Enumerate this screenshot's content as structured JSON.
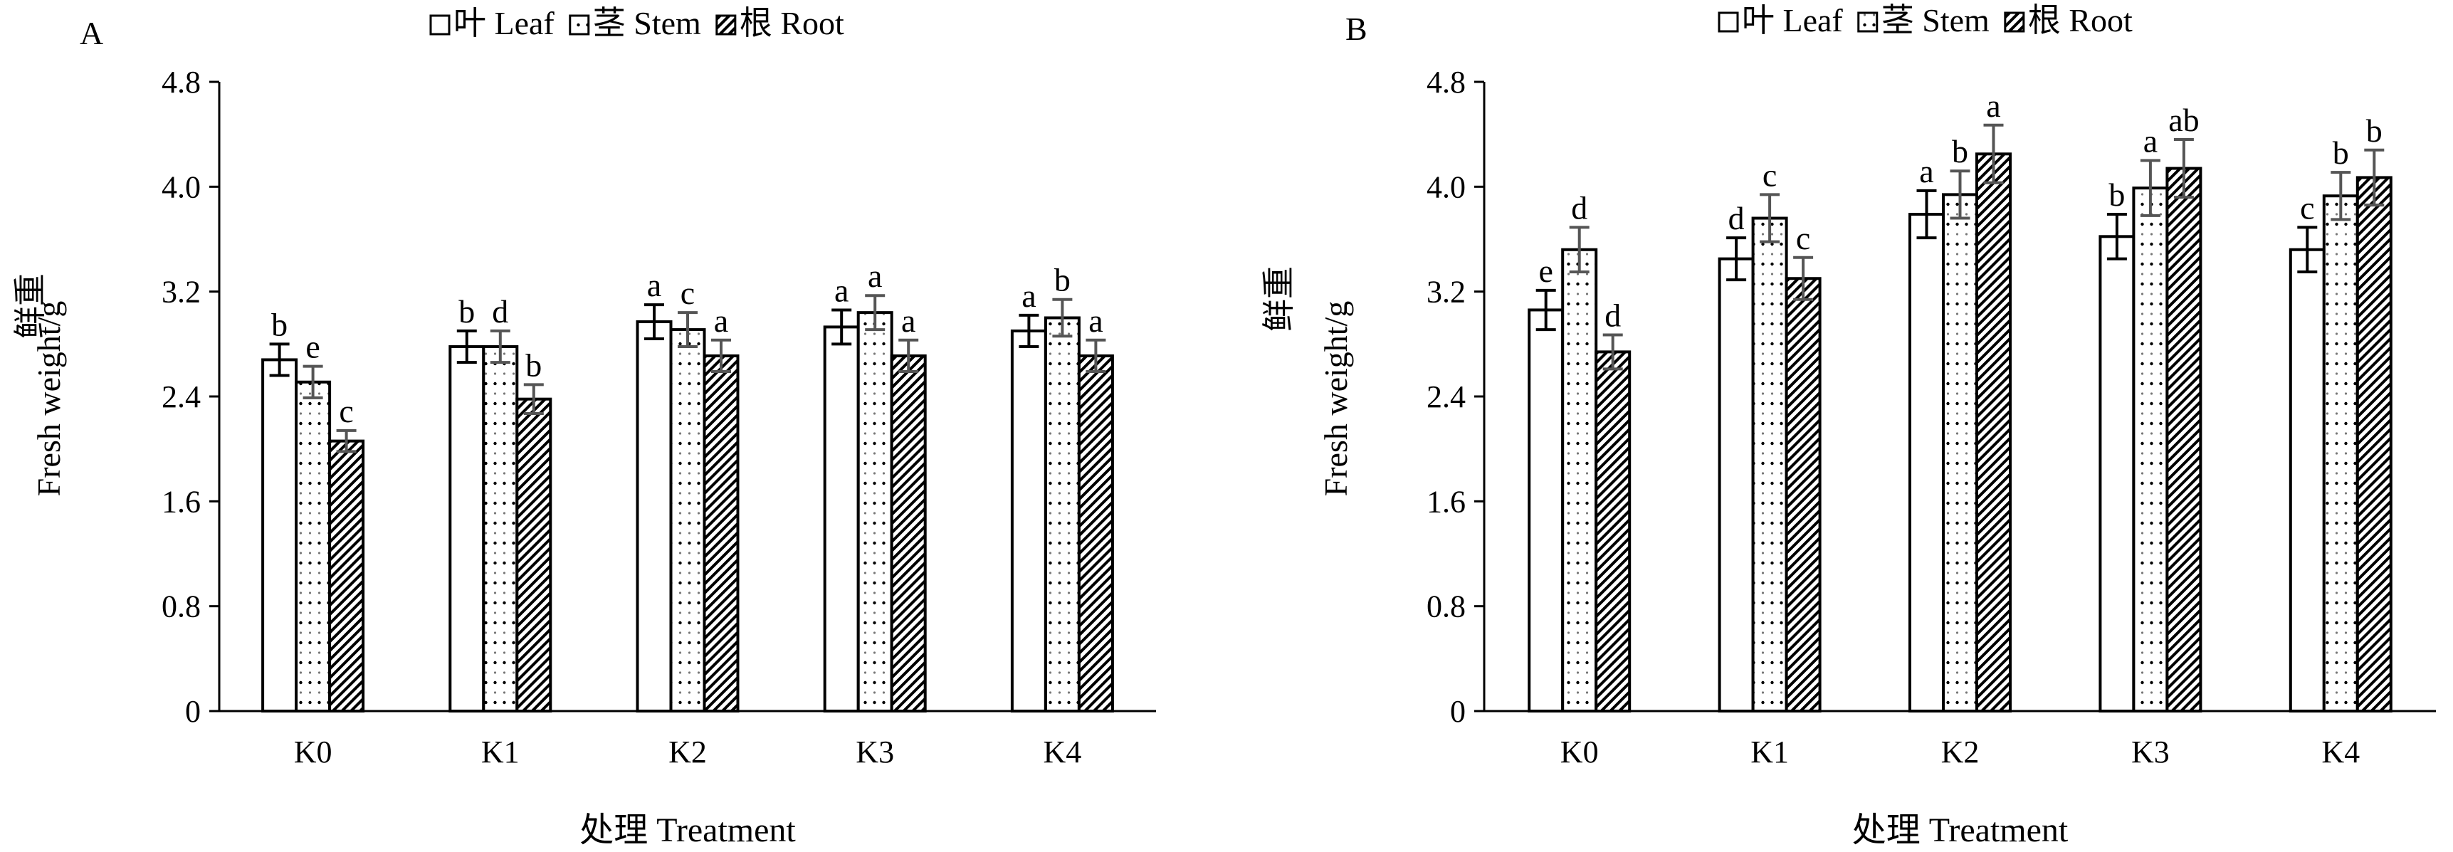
{
  "chart_data": [
    {
      "type": "bar",
      "panel_label": "A",
      "categories": [
        "K0",
        "K1",
        "K2",
        "K3",
        "K4"
      ],
      "ylabel_cn": "鲜重",
      "ylabel_en": "Fresh weight/g",
      "xlabel": "处理 Treatment",
      "ylim": [
        0,
        4.8
      ],
      "yticks": [
        "0",
        "0.8",
        "1.6",
        "2.4",
        "3.2",
        "4.0",
        "4.8"
      ],
      "legend_position": "top",
      "series": [
        {
          "name": "叶 Leaf",
          "pattern": "blank",
          "values": [
            2.68,
            2.78,
            2.97,
            2.93,
            2.9
          ],
          "errors": [
            0.12,
            0.12,
            0.13,
            0.13,
            0.12
          ],
          "letters": [
            "b",
            "b",
            "a",
            "a",
            "a"
          ]
        },
        {
          "name": "茎 Stem",
          "pattern": "dots",
          "values": [
            2.51,
            2.78,
            2.91,
            3.04,
            3.0
          ],
          "errors": [
            0.12,
            0.12,
            0.13,
            0.13,
            0.14
          ],
          "letters": [
            "e",
            "d",
            "c",
            "a",
            "b"
          ]
        },
        {
          "name": "根 Root",
          "pattern": "hatch",
          "values": [
            2.06,
            2.38,
            2.71,
            2.71,
            2.71
          ],
          "errors": [
            0.08,
            0.11,
            0.12,
            0.12,
            0.12
          ],
          "letters": [
            "c",
            "b",
            "a",
            "a",
            "a"
          ]
        }
      ]
    },
    {
      "type": "bar",
      "panel_label": "B",
      "categories": [
        "K0",
        "K1",
        "K2",
        "K3",
        "K4"
      ],
      "ylabel_cn": "鲜重",
      "ylabel_en": "Fresh weight/g",
      "xlabel": "处理 Treatment",
      "ylim": [
        0,
        4.8
      ],
      "yticks": [
        "0",
        "0.8",
        "1.6",
        "2.4",
        "3.2",
        "4.0",
        "4.8"
      ],
      "legend_position": "top",
      "series": [
        {
          "name": "叶 Leaf",
          "pattern": "blank",
          "values": [
            3.06,
            3.45,
            3.79,
            3.62,
            3.52
          ],
          "errors": [
            0.15,
            0.16,
            0.18,
            0.17,
            0.17
          ],
          "letters": [
            "e",
            "d",
            "a",
            "b",
            "c"
          ]
        },
        {
          "name": "茎 Stem",
          "pattern": "dots",
          "values": [
            3.52,
            3.76,
            3.94,
            3.99,
            3.93
          ],
          "errors": [
            0.17,
            0.18,
            0.18,
            0.21,
            0.18
          ],
          "letters": [
            "d",
            "c",
            "b",
            "a",
            "b"
          ]
        },
        {
          "name": "根 Root",
          "pattern": "hatch",
          "values": [
            2.74,
            3.3,
            4.25,
            4.14,
            4.07
          ],
          "errors": [
            0.13,
            0.16,
            0.22,
            0.22,
            0.21
          ],
          "letters": [
            "d",
            "c",
            "a",
            "ab",
            "b"
          ]
        }
      ]
    }
  ]
}
